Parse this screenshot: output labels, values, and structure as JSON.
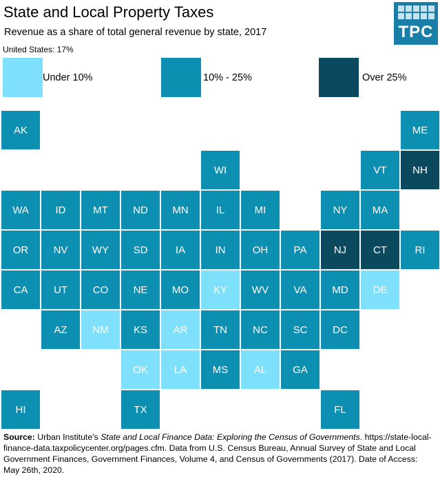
{
  "header": {
    "title": "State and Local Property Taxes",
    "subtitle": "Revenue as a share of total general revenue by state, 2017",
    "us_note": "United States: 17%"
  },
  "logo": {
    "text": "TPC"
  },
  "colors": {
    "low": "#7fe0fb",
    "mid": "#0d8fb1",
    "high": "#0b4a5e",
    "text_on_low": "#ffffff",
    "text_on_mid": "#ffffff",
    "logo_bg": "#1a7fa6"
  },
  "chart_data": {
    "type": "tile-map",
    "title": "State and Local Property Taxes",
    "subtitle": "Revenue as a share of total general revenue by state, 2017",
    "national_value": "United States: 17%",
    "legend": [
      {
        "category": "low",
        "label": "Under 10%"
      },
      {
        "category": "mid",
        "label": "10% - 25%"
      },
      {
        "category": "high",
        "label": "Over 25%"
      }
    ],
    "states": [
      {
        "abbr": "AK",
        "category": "mid",
        "row": 0,
        "col": 0
      },
      {
        "abbr": "ME",
        "category": "mid",
        "row": 0,
        "col": 10
      },
      {
        "abbr": "WI",
        "category": "mid",
        "row": 1,
        "col": 5
      },
      {
        "abbr": "VT",
        "category": "mid",
        "row": 1,
        "col": 9
      },
      {
        "abbr": "NH",
        "category": "high",
        "row": 1,
        "col": 10
      },
      {
        "abbr": "WA",
        "category": "mid",
        "row": 2,
        "col": 0
      },
      {
        "abbr": "ID",
        "category": "mid",
        "row": 2,
        "col": 1
      },
      {
        "abbr": "MT",
        "category": "mid",
        "row": 2,
        "col": 2
      },
      {
        "abbr": "ND",
        "category": "mid",
        "row": 2,
        "col": 3
      },
      {
        "abbr": "MN",
        "category": "mid",
        "row": 2,
        "col": 4
      },
      {
        "abbr": "IL",
        "category": "mid",
        "row": 2,
        "col": 5
      },
      {
        "abbr": "MI",
        "category": "mid",
        "row": 2,
        "col": 6
      },
      {
        "abbr": "NY",
        "category": "mid",
        "row": 2,
        "col": 8
      },
      {
        "abbr": "MA",
        "category": "mid",
        "row": 2,
        "col": 9
      },
      {
        "abbr": "OR",
        "category": "mid",
        "row": 3,
        "col": 0
      },
      {
        "abbr": "NV",
        "category": "mid",
        "row": 3,
        "col": 1
      },
      {
        "abbr": "WY",
        "category": "mid",
        "row": 3,
        "col": 2
      },
      {
        "abbr": "SD",
        "category": "mid",
        "row": 3,
        "col": 3
      },
      {
        "abbr": "IA",
        "category": "mid",
        "row": 3,
        "col": 4
      },
      {
        "abbr": "IN",
        "category": "mid",
        "row": 3,
        "col": 5
      },
      {
        "abbr": "OH",
        "category": "mid",
        "row": 3,
        "col": 6
      },
      {
        "abbr": "PA",
        "category": "mid",
        "row": 3,
        "col": 7
      },
      {
        "abbr": "NJ",
        "category": "high",
        "row": 3,
        "col": 8
      },
      {
        "abbr": "CT",
        "category": "high",
        "row": 3,
        "col": 9
      },
      {
        "abbr": "RI",
        "category": "mid",
        "row": 3,
        "col": 10
      },
      {
        "abbr": "CA",
        "category": "mid",
        "row": 4,
        "col": 0
      },
      {
        "abbr": "UT",
        "category": "mid",
        "row": 4,
        "col": 1
      },
      {
        "abbr": "CO",
        "category": "mid",
        "row": 4,
        "col": 2
      },
      {
        "abbr": "NE",
        "category": "mid",
        "row": 4,
        "col": 3
      },
      {
        "abbr": "MO",
        "category": "mid",
        "row": 4,
        "col": 4
      },
      {
        "abbr": "KY",
        "category": "low",
        "row": 4,
        "col": 5
      },
      {
        "abbr": "WV",
        "category": "mid",
        "row": 4,
        "col": 6
      },
      {
        "abbr": "VA",
        "category": "mid",
        "row": 4,
        "col": 7
      },
      {
        "abbr": "MD",
        "category": "mid",
        "row": 4,
        "col": 8
      },
      {
        "abbr": "DE",
        "category": "low",
        "row": 4,
        "col": 9
      },
      {
        "abbr": "AZ",
        "category": "mid",
        "row": 5,
        "col": 1
      },
      {
        "abbr": "NM",
        "category": "low",
        "row": 5,
        "col": 2
      },
      {
        "abbr": "KS",
        "category": "mid",
        "row": 5,
        "col": 3
      },
      {
        "abbr": "AR",
        "category": "low",
        "row": 5,
        "col": 4
      },
      {
        "abbr": "TN",
        "category": "mid",
        "row": 5,
        "col": 5
      },
      {
        "abbr": "NC",
        "category": "mid",
        "row": 5,
        "col": 6
      },
      {
        "abbr": "SC",
        "category": "mid",
        "row": 5,
        "col": 7
      },
      {
        "abbr": "DC",
        "category": "mid",
        "row": 5,
        "col": 8
      },
      {
        "abbr": "OK",
        "category": "low",
        "row": 6,
        "col": 3
      },
      {
        "abbr": "LA",
        "category": "low",
        "row": 6,
        "col": 4
      },
      {
        "abbr": "MS",
        "category": "mid",
        "row": 6,
        "col": 5
      },
      {
        "abbr": "AL",
        "category": "low",
        "row": 6,
        "col": 6
      },
      {
        "abbr": "GA",
        "category": "mid",
        "row": 6,
        "col": 7
      },
      {
        "abbr": "HI",
        "category": "mid",
        "row": 7,
        "col": 0
      },
      {
        "abbr": "TX",
        "category": "mid",
        "row": 7,
        "col": 3
      },
      {
        "abbr": "FL",
        "category": "mid",
        "row": 7,
        "col": 8
      }
    ]
  },
  "source": {
    "label": "Source:",
    "text_1": " Urban Institute's ",
    "italic_title": "State and Local Finance Data: Exploring  the Census of Governments",
    "text_2": ". https://state-local-finance-data.taxpolicycenter.org/pages.cfm.  Data from U.S. Census Bureau, Annual Survey of State and Local Government Finances, Government Finances, Volume 4, and Census of Governments (2017). Date of Access: May 26th, 2020."
  }
}
